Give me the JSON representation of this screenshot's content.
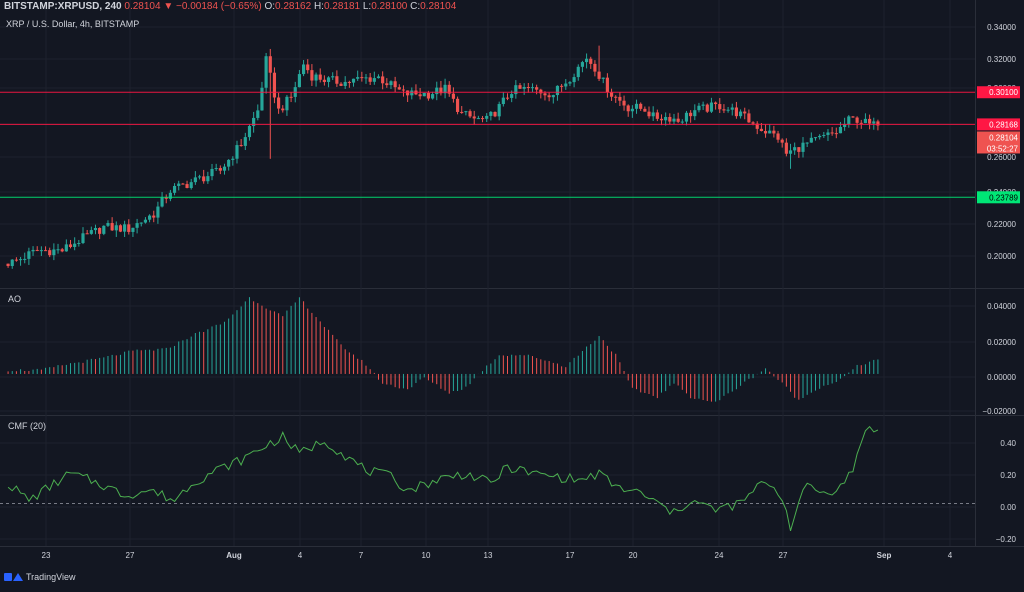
{
  "header": {
    "symbol": "BITSTAMP:XRPUSD, 240",
    "last": "0.28104",
    "arrow": "▼",
    "change": "−0.00184 (−0.65%)",
    "o_label": "O:",
    "o_value": "0.28162",
    "h_label": "H:",
    "h_value": "0.28181",
    "l_label": "L:",
    "l_value": "0.28100",
    "c_label": "C:",
    "c_value": "0.28104",
    "pair_line": "XRP / U.S. Dollar, 4h, BITSTAMP"
  },
  "colors": {
    "background": "#131722",
    "up": "#26a69a",
    "down": "#ef5350",
    "resistance": "#ff1744",
    "support": "#00e676",
    "cmf_line": "#4caf50",
    "grid": "#1e222d",
    "text": "#d1d4dc"
  },
  "branding": {
    "logo_text": "TradingView",
    "logo_icon": "tradingview-logo-icon"
  },
  "chart_data": [
    {
      "type": "candlestick",
      "pane": "price",
      "title": "XRP / U.S. Dollar, 4h, BITSTAMP",
      "ylim": [
        0.184,
        0.348
      ],
      "y_ticks": [
        "0.34000",
        "0.32000",
        "0.30000",
        "0.28000",
        "0.26000",
        "0.24000",
        "0.22000",
        "0.20000"
      ],
      "x_ticks": [
        "23",
        "27",
        "Aug",
        "4",
        "7",
        "10",
        "13",
        "17",
        "20",
        "24",
        "27",
        "Sep",
        "4"
      ],
      "bars": 210,
      "path_t": [
        0,
        2,
        4,
        8,
        14,
        18,
        24,
        30,
        34,
        36,
        40,
        44,
        52,
        57,
        61,
        63,
        66,
        69,
        72,
        74,
        78,
        82,
        86,
        90,
        96,
        102,
        106,
        110,
        113,
        116,
        119,
        122,
        126,
        132,
        136,
        140,
        142,
        144,
        146,
        150,
        154,
        156,
        160,
        162,
        166,
        172,
        176,
        182,
        186,
        188,
        191,
        194,
        196,
        200,
        203,
        205,
        208,
        209
      ],
      "path_v": [
        0.198,
        0.199,
        0.201,
        0.206,
        0.206,
        0.212,
        0.22,
        0.219,
        0.225,
        0.228,
        0.242,
        0.246,
        0.254,
        0.27,
        0.29,
        0.32,
        0.29,
        0.298,
        0.318,
        0.311,
        0.308,
        0.307,
        0.309,
        0.31,
        0.3,
        0.3,
        0.303,
        0.288,
        0.285,
        0.284,
        0.292,
        0.302,
        0.303,
        0.3,
        0.31,
        0.322,
        0.316,
        0.307,
        0.3,
        0.292,
        0.291,
        0.286,
        0.286,
        0.284,
        0.29,
        0.293,
        0.289,
        0.279,
        0.274,
        0.264,
        0.268,
        0.271,
        0.273,
        0.277,
        0.284,
        0.285,
        0.2814,
        0.281
      ],
      "wick_extremes": [
        {
          "t": 63,
          "high": 0.327,
          "low": 0.261
        },
        {
          "t": 142,
          "high": 0.329,
          "low": 0.311
        },
        {
          "t": 188,
          "high": 0.27,
          "low": 0.255
        }
      ],
      "levels": [
        {
          "value": 0.301,
          "label": "0.30100",
          "color": "#ff1744"
        },
        {
          "value": 0.28168,
          "label": "0.28168",
          "color": "#ff1744"
        },
        {
          "value": 0.23789,
          "label": "0.23789",
          "color": "#00e676"
        }
      ],
      "last_price": {
        "value": 0.28104,
        "label": "0.28104",
        "countdown": "03:52:27"
      }
    },
    {
      "type": "histogram",
      "pane": "AO",
      "title": "AO",
      "ylim": [
        -0.021,
        0.044
      ],
      "y_ticks": [
        "0.04000",
        "0.02000",
        "0.00000",
        "−0.02000"
      ],
      "path_t": [
        0,
        8,
        14,
        22,
        30,
        38,
        44,
        52,
        58,
        62,
        66,
        70,
        74,
        80,
        86,
        90,
        96,
        100,
        106,
        110,
        114,
        118,
        124,
        128,
        134,
        138,
        142,
        146,
        150,
        156,
        160,
        164,
        170,
        176,
        182,
        186,
        190,
        194,
        200,
        204,
        209
      ],
      "path_v": [
        0.002,
        0.002,
        0.005,
        0.008,
        0.012,
        0.013,
        0.02,
        0.027,
        0.04,
        0.035,
        0.03,
        0.04,
        0.03,
        0.015,
        0.005,
        -0.005,
        -0.008,
        -0.002,
        -0.01,
        -0.007,
        0.002,
        0.01,
        0.01,
        0.008,
        0.004,
        0.012,
        0.02,
        0.01,
        -0.008,
        -0.012,
        -0.005,
        -0.012,
        -0.015,
        -0.006,
        0.003,
        -0.005,
        -0.014,
        -0.008,
        -0.003,
        0.004,
        0.008
      ]
    },
    {
      "type": "line",
      "pane": "CMF",
      "title": "CMF (20)",
      "ylim": [
        -0.25,
        0.52
      ],
      "y_ticks": [
        "0.40",
        "0.20",
        "0.00",
        "−0.20"
      ],
      "path_t": [
        0,
        5,
        10,
        15,
        22,
        28,
        34,
        40,
        44,
        50,
        56,
        62,
        66,
        70,
        76,
        82,
        86,
        92,
        96,
        104,
        110,
        116,
        120,
        126,
        132,
        138,
        142,
        146,
        152,
        156,
        160,
        164,
        170,
        176,
        182,
        186,
        188,
        192,
        196,
        200,
        203,
        206,
        209
      ],
      "path_v": [
        0.12,
        0.02,
        0.1,
        0.18,
        0.12,
        0.05,
        0.08,
        0.02,
        0.12,
        0.2,
        0.26,
        0.35,
        0.4,
        0.3,
        0.38,
        0.27,
        0.2,
        0.16,
        0.08,
        0.15,
        0.18,
        0.12,
        0.22,
        0.18,
        0.16,
        0.14,
        0.18,
        0.1,
        0.06,
        0.0,
        -0.06,
        0.02,
        -0.04,
        0.0,
        0.14,
        0.04,
        -0.14,
        0.12,
        0.06,
        0.1,
        0.2,
        0.46,
        0.43
      ]
    }
  ]
}
